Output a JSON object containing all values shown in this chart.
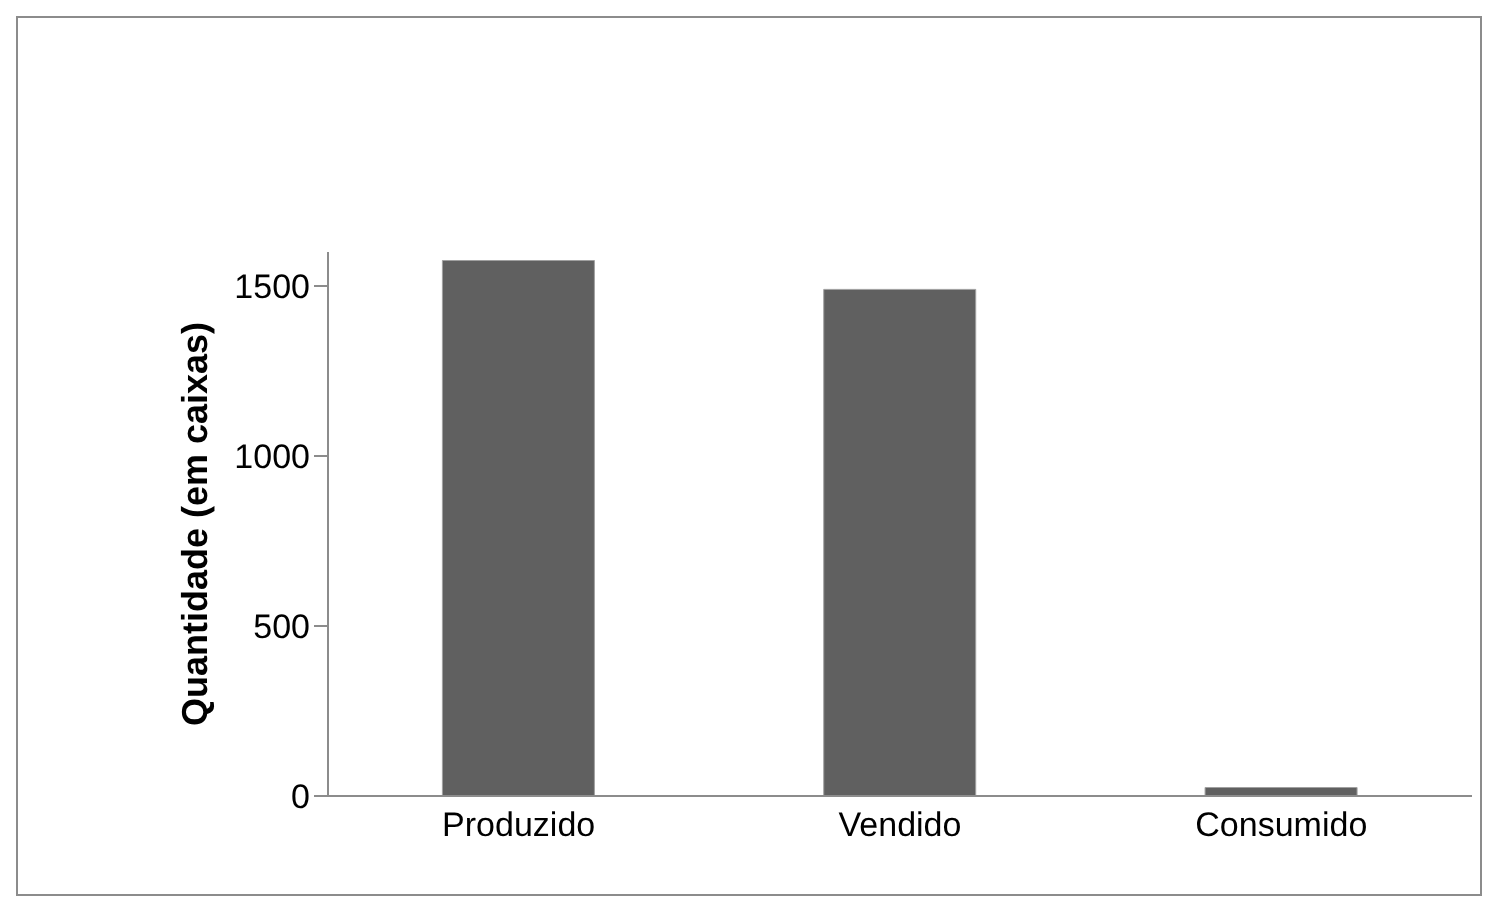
{
  "chart_data": {
    "type": "bar",
    "ylabel": "Quantidade (em caixas)",
    "categories": [
      "Produzido",
      "Vendido",
      "Consumido"
    ],
    "values": [
      1575,
      1490,
      25
    ],
    "color": "#606060",
    "ylim": [
      0,
      1600
    ],
    "yticks": [
      0,
      500,
      1000,
      1500
    ],
    "grid": false,
    "legend": false
  }
}
